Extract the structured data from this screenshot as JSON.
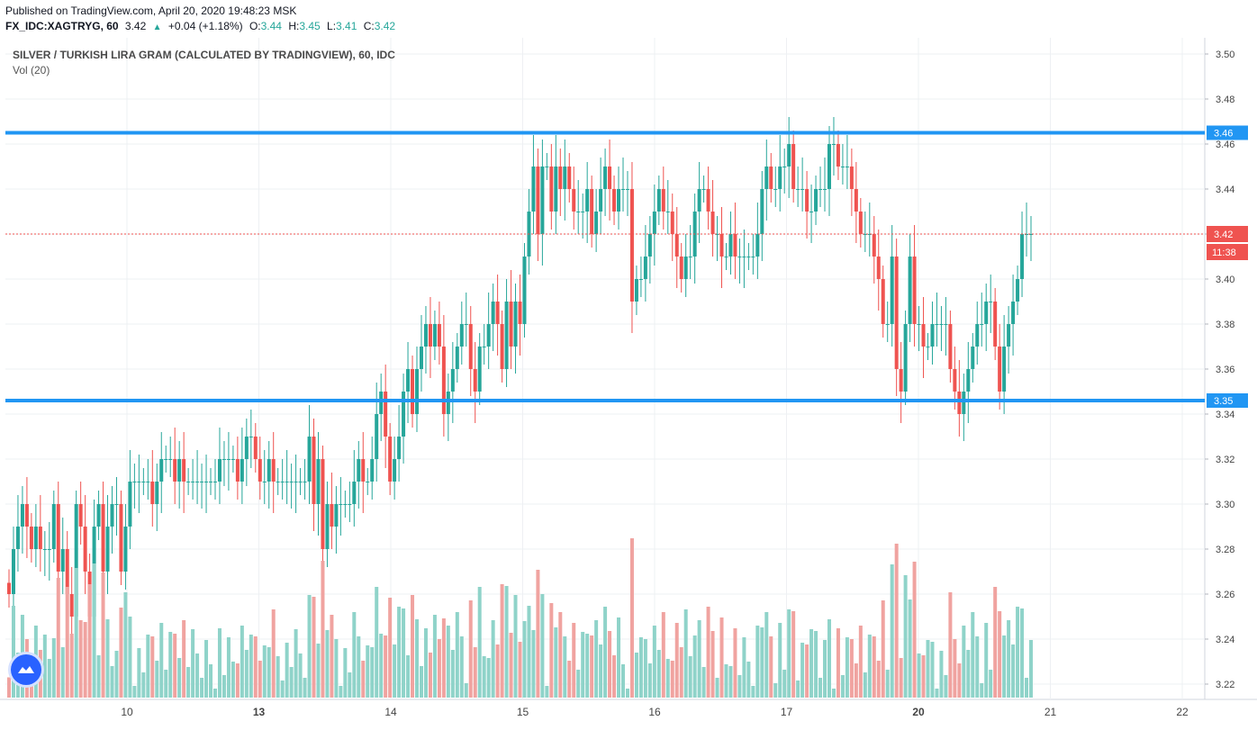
{
  "header": {
    "published": "Published on TradingView.com, April 20, 2020 19:48:23 MSK",
    "symbol": "FX_IDC:XAGTRYG, 60",
    "last": "3.42",
    "change_arrow": "▲",
    "change": "+0.04 (+1.18%)",
    "ohlc": {
      "o_label": "O:",
      "o": "3.44",
      "h_label": "H:",
      "h": "3.45",
      "l_label": "L:",
      "l": "3.41",
      "c_label": "C:",
      "c": "3.42"
    }
  },
  "legend": {
    "title": "SILVER / TURKISH LIRA GRAM (CALCULATED BY TRADINGVIEW), 60, IDC",
    "volume": "Vol (20)"
  },
  "colors": {
    "up": "#26a69a",
    "down": "#ef5350",
    "vol_up": "#8fd3c9",
    "vol_down": "#f0a3a0",
    "level_line": "#2196f3",
    "price_line": "#ef5350",
    "grid": "#eef0f3"
  },
  "chart_data": {
    "type": "candlestick",
    "price_axis": {
      "min": 3.22,
      "max": 3.5,
      "ticks": [
        "3.50",
        "3.48",
        "3.46",
        "3.44",
        "3.42",
        "3.40",
        "3.38",
        "3.36",
        "3.34",
        "3.32",
        "3.30",
        "3.28",
        "3.26",
        "3.24",
        "3.22"
      ]
    },
    "time_axis": {
      "ticks": [
        "10",
        "13",
        "14",
        "15",
        "16",
        "17",
        "20",
        "21",
        "22"
      ]
    },
    "horizontal_levels": [
      {
        "value": 3.465,
        "label": "3.46"
      },
      {
        "value": 3.346,
        "label": "3.35"
      }
    ],
    "last_price": {
      "value": 3.42,
      "label": "3.42",
      "countdown": "11:38"
    },
    "candles_close": [
      3.26,
      3.28,
      3.29,
      3.3,
      3.29,
      3.28,
      3.29,
      3.28,
      3.28,
      3.28,
      3.3,
      3.27,
      3.28,
      3.26,
      3.25,
      3.3,
      3.29,
      3.27,
      3.25,
      3.29,
      3.3,
      3.27,
      3.29,
      3.3,
      3.3,
      3.27,
      3.29,
      3.31,
      3.31,
      3.31,
      3.31,
      3.31,
      3.3,
      3.31,
      3.32,
      3.32,
      3.32,
      3.31,
      3.32,
      3.31,
      3.31,
      3.31,
      3.31,
      3.31,
      3.31,
      3.31,
      3.31,
      3.32,
      3.32,
      3.32,
      3.32,
      3.31,
      3.32,
      3.33,
      3.33,
      3.32,
      3.31,
      3.31,
      3.32,
      3.31,
      3.31,
      3.31,
      3.31,
      3.31,
      3.31,
      3.31,
      3.31,
      3.33,
      3.3,
      3.32,
      3.28,
      3.3,
      3.29,
      3.3,
      3.3,
      3.3,
      3.3,
      3.31,
      3.32,
      3.31,
      3.31,
      3.32,
      3.34,
      3.35,
      3.33,
      3.31,
      3.32,
      3.33,
      3.35,
      3.36,
      3.34,
      3.36,
      3.37,
      3.38,
      3.37,
      3.38,
      3.37,
      3.34,
      3.35,
      3.36,
      3.37,
      3.38,
      3.38,
      3.36,
      3.35,
      3.37,
      3.37,
      3.38,
      3.39,
      3.38,
      3.36,
      3.39,
      3.37,
      3.39,
      3.38,
      3.41,
      3.43,
      3.45,
      3.42,
      3.45,
      3.45,
      3.43,
      3.45,
      3.44,
      3.45,
      3.44,
      3.43,
      3.43,
      3.43,
      3.44,
      3.42,
      3.43,
      3.44,
      3.45,
      3.44,
      3.43,
      3.44,
      3.44,
      3.44,
      3.39,
      3.4,
      3.4,
      3.41,
      3.42,
      3.43,
      3.44,
      3.43,
      3.43,
      3.42,
      3.41,
      3.4,
      3.41,
      3.41,
      3.43,
      3.44,
      3.44,
      3.43,
      3.42,
      3.42,
      3.41,
      3.41,
      3.42,
      3.41,
      3.41,
      3.41,
      3.41,
      3.41,
      3.42,
      3.44,
      3.45,
      3.44,
      3.44,
      3.45,
      3.45,
      3.46,
      3.44,
      3.44,
      3.44,
      3.43,
      3.43,
      3.44,
      3.44,
      3.44,
      3.46,
      3.46,
      3.45,
      3.45,
      3.45,
      3.44,
      3.43,
      3.42,
      3.42,
      3.42,
      3.41,
      3.4,
      3.38,
      3.38,
      3.41,
      3.36,
      3.35,
      3.38,
      3.41,
      3.38,
      3.38,
      3.37,
      3.37,
      3.38,
      3.38,
      3.38,
      3.38,
      3.36,
      3.35,
      3.34,
      3.35,
      3.36,
      3.37,
      3.38,
      3.38,
      3.39,
      3.39,
      3.37,
      3.35,
      3.37,
      3.38,
      3.39,
      3.4,
      3.42,
      3.42,
      3.42
    ]
  }
}
